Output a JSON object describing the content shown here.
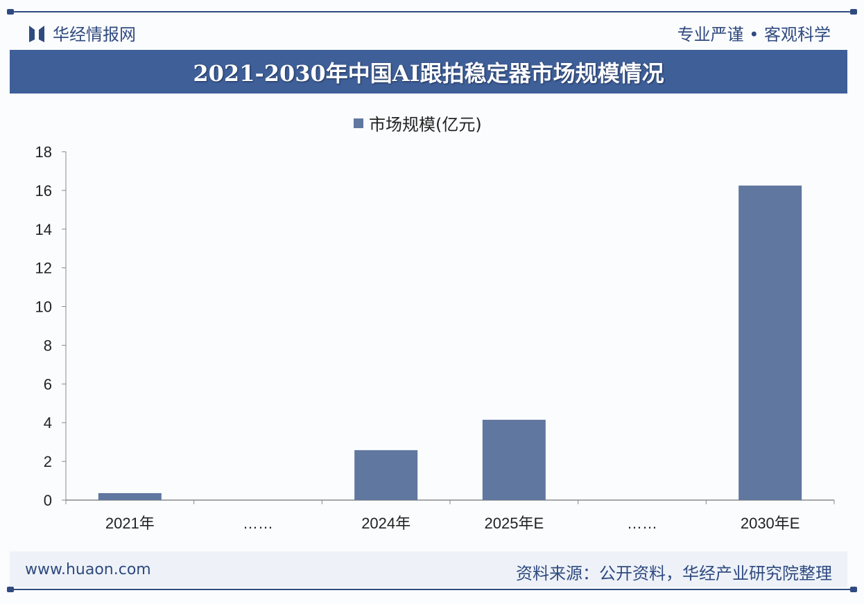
{
  "header": {
    "brand": "华经情报网",
    "slogan": "专业严谨 • 客观科学",
    "title": "2021-2030年中国AI跟拍稳定器市场规模情况"
  },
  "footer": {
    "site": "www.huaon.com",
    "source": "资料来源：公开资料，华经产业研究院整理"
  },
  "colors": {
    "bar": "#60779f",
    "banner": "#3f5f98",
    "accent": "#2f4a7f"
  },
  "chart_data": {
    "type": "bar",
    "title": "2021-2030年中国AI跟拍稳定器市场规模情况",
    "categories": [
      "2021年",
      "……",
      "2024年",
      "2025年E",
      "……",
      "2030年E"
    ],
    "series": [
      {
        "name": "市场规模(亿元)",
        "values": [
          0.36,
          null,
          2.58,
          4.15,
          null,
          16.25
        ]
      }
    ],
    "ylim": [
      0,
      18
    ],
    "yticks": [
      "0",
      "2",
      "4",
      "6",
      "8",
      "10",
      "12",
      "14",
      "16",
      "18"
    ],
    "legend": "top",
    "grid": false
  }
}
